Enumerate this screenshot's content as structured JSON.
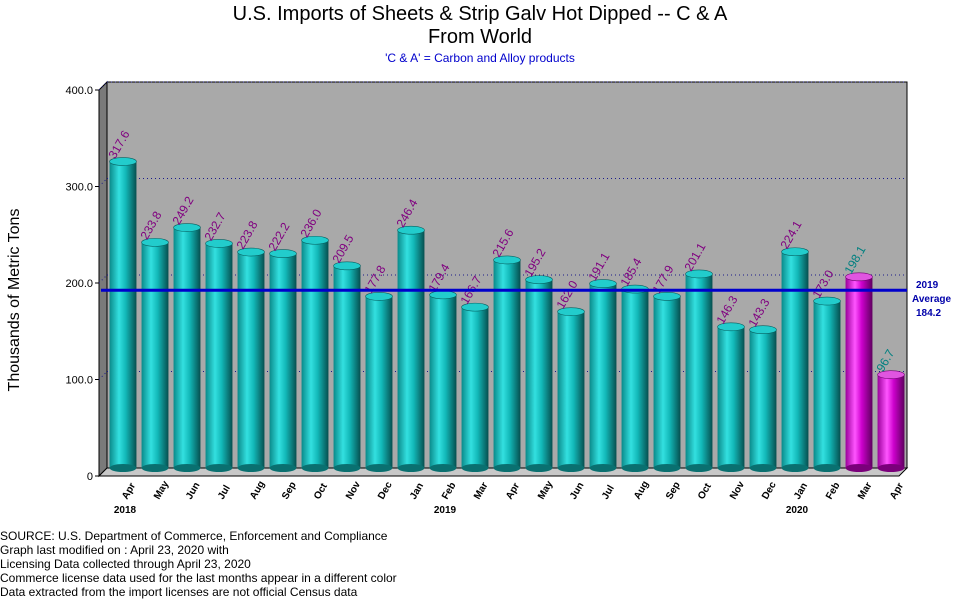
{
  "title_line1": "U.S. Imports of Sheets & Strip Galv Hot Dipped -- C & A",
  "title_line2": "From World",
  "subtitle": "'C & A' = Carbon and Alloy products",
  "average_label": {
    "year": "2019",
    "word": "Average",
    "value": "184.2"
  },
  "source_lines": [
    "SOURCE: U.S. Department of Commerce, Enforcement and Compliance",
    "Graph last modified on : April 23, 2020     with",
    "Licensing Data collected through April 23, 2020",
    "Commerce license data used for the last months appear in a different color",
    "Data extracted from the import licenses are not official Census data"
  ],
  "colors": {
    "census_bar": "#12b8b8",
    "license_bar": "#cc00cc",
    "census_label": "#800080",
    "license_label": "#008080",
    "average_line": "#0000cc",
    "plot_bg": "#a9a9a9"
  },
  "chart_data": {
    "type": "bar",
    "ylabel": "Thousands of Metric Tons",
    "xlabel": "",
    "ylim": [
      0,
      400
    ],
    "yticks": [
      "0",
      "100.0",
      "200.0",
      "300.0",
      "400.0"
    ],
    "grid": true,
    "categories": [
      "Apr",
      "May",
      "Jun",
      "Jul",
      "Aug",
      "Sep",
      "Oct",
      "Nov",
      "Dec",
      "Jan",
      "Feb",
      "Mar",
      "Apr",
      "May",
      "Jun",
      "Jul",
      "Aug",
      "Sep",
      "Oct",
      "Nov",
      "Dec",
      "Jan",
      "Feb",
      "Mar",
      "Apr"
    ],
    "year_labels": [
      {
        "index": 0,
        "label": "2018"
      },
      {
        "index": 10,
        "label": "2019"
      },
      {
        "index": 21,
        "label": "2020"
      }
    ],
    "values": [
      317.6,
      233.8,
      249.2,
      232.7,
      223.8,
      222.2,
      236.0,
      209.5,
      177.8,
      246.4,
      179.4,
      166.7,
      215.6,
      195.2,
      162.0,
      191.1,
      185.4,
      177.9,
      201.1,
      146.3,
      143.3,
      224.1,
      173.0,
      198.1,
      96.7
    ],
    "value_labels": [
      "317.6",
      "233.8",
      "249.2",
      "232.7",
      "223.8",
      "222.2",
      "236.0",
      "209.5",
      "177.8",
      "246.4",
      "179.4",
      "166.7",
      "215.6",
      "195.2",
      "162.0",
      "191.1",
      "185.4",
      "177.9",
      "201.1",
      "146.3",
      "143.3",
      "224.1",
      "173.0",
      "198.1",
      "96.7"
    ],
    "source_type": [
      "census",
      "census",
      "census",
      "census",
      "census",
      "census",
      "census",
      "census",
      "census",
      "census",
      "census",
      "census",
      "census",
      "census",
      "census",
      "census",
      "census",
      "census",
      "census",
      "census",
      "census",
      "census",
      "census",
      "license",
      "license"
    ],
    "average": 184.2
  }
}
